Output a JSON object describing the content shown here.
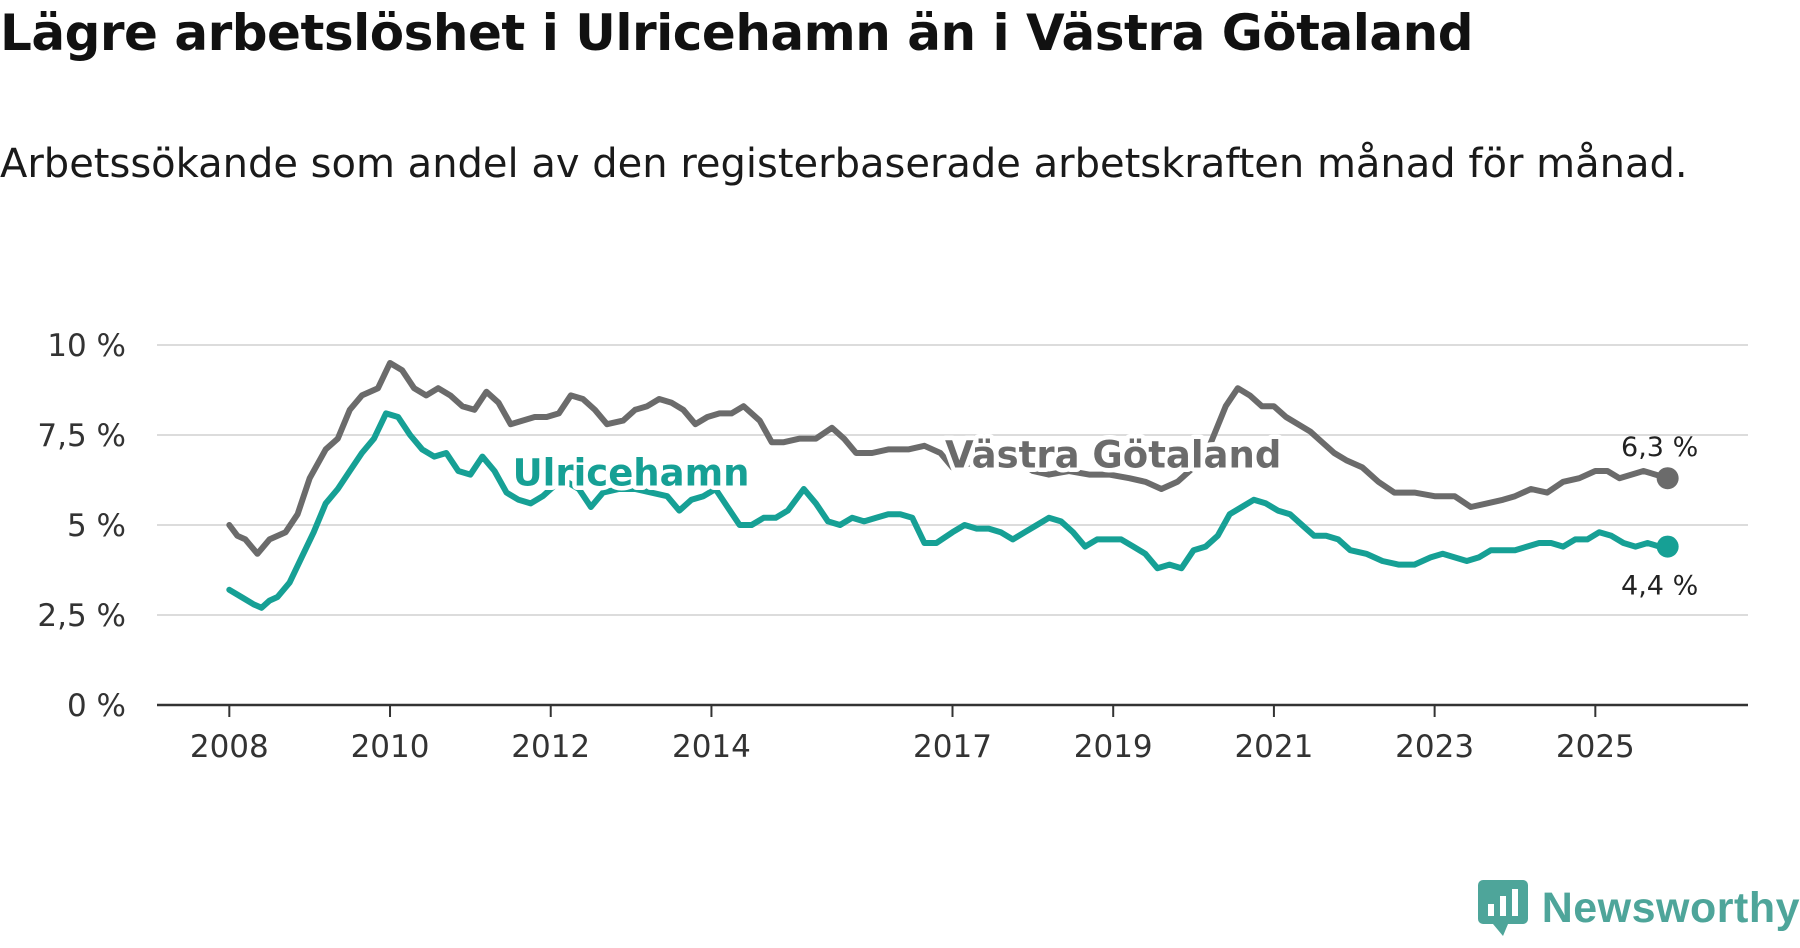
{
  "header": {
    "title": "Lägre arbetslöshet i Ulricehamn än i Västra Götaland",
    "subtitle": "Arbetssökande som andel av den registerbaserade arbetskraften månad för månad."
  },
  "brand": {
    "name": "Newsworthy",
    "icon": "newsworthy-logo-icon",
    "color": "#4ea59a"
  },
  "chart_data": {
    "type": "line",
    "title": "Lägre arbetslöshet i Ulricehamn än i Västra Götaland",
    "subtitle": "Arbetssökande som andel av den registerbaserade arbetskraften månad för månad.",
    "xlabel": "",
    "ylabel": "",
    "x_unit": "year (decimal)",
    "xlim": [
      2007.1,
      2026.9
    ],
    "ylim": [
      0,
      10
    ],
    "grid": true,
    "y_ticks": [
      0,
      2.5,
      5,
      7.5,
      10
    ],
    "y_tick_labels": [
      "0 %",
      "2,5 %",
      "5 %",
      "7,5 %",
      "10 %"
    ],
    "x_ticks": [
      2008,
      2010,
      2012,
      2014,
      2017,
      2019,
      2021,
      2023,
      2025
    ],
    "x_tick_labels": [
      "2008",
      "2010",
      "2012",
      "2014",
      "2017",
      "2019",
      "2021",
      "2023",
      "2025"
    ],
    "series": [
      {
        "name": "Västra Götaland",
        "color": "#6b6b6b",
        "end_label": "6,3 %",
        "points": [
          [
            2008.0,
            5.0
          ],
          [
            2008.1,
            4.7
          ],
          [
            2008.2,
            4.6
          ],
          [
            2008.35,
            4.2
          ],
          [
            2008.5,
            4.6
          ],
          [
            2008.7,
            4.8
          ],
          [
            2008.85,
            5.3
          ],
          [
            2009.0,
            6.3
          ],
          [
            2009.2,
            7.1
          ],
          [
            2009.35,
            7.4
          ],
          [
            2009.5,
            8.2
          ],
          [
            2009.65,
            8.6
          ],
          [
            2009.85,
            8.8
          ],
          [
            2010.0,
            9.5
          ],
          [
            2010.15,
            9.3
          ],
          [
            2010.3,
            8.8
          ],
          [
            2010.45,
            8.6
          ],
          [
            2010.6,
            8.8
          ],
          [
            2010.75,
            8.6
          ],
          [
            2010.9,
            8.3
          ],
          [
            2011.05,
            8.2
          ],
          [
            2011.2,
            8.7
          ],
          [
            2011.35,
            8.4
          ],
          [
            2011.5,
            7.8
          ],
          [
            2011.65,
            7.9
          ],
          [
            2011.8,
            8.0
          ],
          [
            2011.95,
            8.0
          ],
          [
            2012.1,
            8.1
          ],
          [
            2012.25,
            8.6
          ],
          [
            2012.4,
            8.5
          ],
          [
            2012.55,
            8.2
          ],
          [
            2012.7,
            7.8
          ],
          [
            2012.9,
            7.9
          ],
          [
            2013.05,
            8.2
          ],
          [
            2013.2,
            8.3
          ],
          [
            2013.35,
            8.5
          ],
          [
            2013.5,
            8.4
          ],
          [
            2013.65,
            8.2
          ],
          [
            2013.8,
            7.8
          ],
          [
            2013.95,
            8.0
          ],
          [
            2014.1,
            8.1
          ],
          [
            2014.25,
            8.1
          ],
          [
            2014.4,
            8.3
          ],
          [
            2014.6,
            7.9
          ],
          [
            2014.75,
            7.3
          ],
          [
            2014.9,
            7.3
          ],
          [
            2015.1,
            7.4
          ],
          [
            2015.3,
            7.4
          ],
          [
            2015.5,
            7.7
          ],
          [
            2015.65,
            7.4
          ],
          [
            2015.8,
            7.0
          ],
          [
            2016.0,
            7.0
          ],
          [
            2016.2,
            7.1
          ],
          [
            2016.45,
            7.1
          ],
          [
            2016.65,
            7.2
          ],
          [
            2016.85,
            7.0
          ],
          [
            2017.0,
            6.6
          ],
          [
            2017.2,
            6.7
          ],
          [
            2017.4,
            6.8
          ],
          [
            2017.6,
            6.9
          ],
          [
            2017.8,
            6.8
          ],
          [
            2018.0,
            6.5
          ],
          [
            2018.2,
            6.4
          ],
          [
            2018.45,
            6.5
          ],
          [
            2018.7,
            6.4
          ],
          [
            2018.95,
            6.4
          ],
          [
            2019.2,
            6.3
          ],
          [
            2019.4,
            6.2
          ],
          [
            2019.6,
            6.0
          ],
          [
            2019.8,
            6.2
          ],
          [
            2020.0,
            6.6
          ],
          [
            2020.2,
            7.2
          ],
          [
            2020.4,
            8.3
          ],
          [
            2020.55,
            8.8
          ],
          [
            2020.7,
            8.6
          ],
          [
            2020.85,
            8.3
          ],
          [
            2021.0,
            8.3
          ],
          [
            2021.15,
            8.0
          ],
          [
            2021.3,
            7.8
          ],
          [
            2021.45,
            7.6
          ],
          [
            2021.6,
            7.3
          ],
          [
            2021.75,
            7.0
          ],
          [
            2021.9,
            6.8
          ],
          [
            2022.1,
            6.6
          ],
          [
            2022.3,
            6.2
          ],
          [
            2022.5,
            5.9
          ],
          [
            2022.75,
            5.9
          ],
          [
            2023.0,
            5.8
          ],
          [
            2023.25,
            5.8
          ],
          [
            2023.45,
            5.5
          ],
          [
            2023.65,
            5.6
          ],
          [
            2023.85,
            5.7
          ],
          [
            2024.0,
            5.8
          ],
          [
            2024.2,
            6.0
          ],
          [
            2024.4,
            5.9
          ],
          [
            2024.6,
            6.2
          ],
          [
            2024.8,
            6.3
          ],
          [
            2025.0,
            6.5
          ],
          [
            2025.15,
            6.5
          ],
          [
            2025.3,
            6.3
          ],
          [
            2025.45,
            6.4
          ],
          [
            2025.6,
            6.5
          ],
          [
            2025.75,
            6.4
          ],
          [
            2025.9,
            6.3
          ]
        ]
      },
      {
        "name": "Ulricehamn",
        "color": "#16a095",
        "end_label": "4,4 %",
        "points": [
          [
            2008.0,
            3.2
          ],
          [
            2008.15,
            3.0
          ],
          [
            2008.3,
            2.8
          ],
          [
            2008.4,
            2.7
          ],
          [
            2008.5,
            2.9
          ],
          [
            2008.6,
            3.0
          ],
          [
            2008.75,
            3.4
          ],
          [
            2008.9,
            4.1
          ],
          [
            2009.05,
            4.8
          ],
          [
            2009.2,
            5.6
          ],
          [
            2009.35,
            6.0
          ],
          [
            2009.5,
            6.5
          ],
          [
            2009.65,
            7.0
          ],
          [
            2009.8,
            7.4
          ],
          [
            2009.95,
            8.1
          ],
          [
            2010.1,
            8.0
          ],
          [
            2010.25,
            7.5
          ],
          [
            2010.4,
            7.1
          ],
          [
            2010.55,
            6.9
          ],
          [
            2010.7,
            7.0
          ],
          [
            2010.85,
            6.5
          ],
          [
            2011.0,
            6.4
          ],
          [
            2011.15,
            6.9
          ],
          [
            2011.3,
            6.5
          ],
          [
            2011.45,
            5.9
          ],
          [
            2011.6,
            5.7
          ],
          [
            2011.75,
            5.6
          ],
          [
            2011.9,
            5.8
          ],
          [
            2012.05,
            6.1
          ],
          [
            2012.2,
            6.2
          ],
          [
            2012.35,
            6.0
          ],
          [
            2012.5,
            5.5
          ],
          [
            2012.65,
            5.9
          ],
          [
            2012.85,
            6.0
          ],
          [
            2013.05,
            6.0
          ],
          [
            2013.25,
            5.9
          ],
          [
            2013.45,
            5.8
          ],
          [
            2013.6,
            5.4
          ],
          [
            2013.75,
            5.7
          ],
          [
            2013.9,
            5.8
          ],
          [
            2014.05,
            6.0
          ],
          [
            2014.2,
            5.5
          ],
          [
            2014.35,
            5.0
          ],
          [
            2014.5,
            5.0
          ],
          [
            2014.65,
            5.2
          ],
          [
            2014.8,
            5.2
          ],
          [
            2014.95,
            5.4
          ],
          [
            2015.15,
            6.0
          ],
          [
            2015.3,
            5.6
          ],
          [
            2015.45,
            5.1
          ],
          [
            2015.6,
            5.0
          ],
          [
            2015.75,
            5.2
          ],
          [
            2015.9,
            5.1
          ],
          [
            2016.05,
            5.2
          ],
          [
            2016.2,
            5.3
          ],
          [
            2016.35,
            5.3
          ],
          [
            2016.5,
            5.2
          ],
          [
            2016.65,
            4.5
          ],
          [
            2016.8,
            4.5
          ],
          [
            2017.0,
            4.8
          ],
          [
            2017.15,
            5.0
          ],
          [
            2017.3,
            4.9
          ],
          [
            2017.45,
            4.9
          ],
          [
            2017.6,
            4.8
          ],
          [
            2017.75,
            4.6
          ],
          [
            2017.9,
            4.8
          ],
          [
            2018.05,
            5.0
          ],
          [
            2018.2,
            5.2
          ],
          [
            2018.35,
            5.1
          ],
          [
            2018.5,
            4.8
          ],
          [
            2018.65,
            4.4
          ],
          [
            2018.8,
            4.6
          ],
          [
            2018.95,
            4.6
          ],
          [
            2019.1,
            4.6
          ],
          [
            2019.25,
            4.4
          ],
          [
            2019.4,
            4.2
          ],
          [
            2019.55,
            3.8
          ],
          [
            2019.7,
            3.9
          ],
          [
            2019.85,
            3.8
          ],
          [
            2020.0,
            4.3
          ],
          [
            2020.15,
            4.4
          ],
          [
            2020.3,
            4.7
          ],
          [
            2020.45,
            5.3
          ],
          [
            2020.6,
            5.5
          ],
          [
            2020.75,
            5.7
          ],
          [
            2020.9,
            5.6
          ],
          [
            2021.05,
            5.4
          ],
          [
            2021.2,
            5.3
          ],
          [
            2021.35,
            5.0
          ],
          [
            2021.5,
            4.7
          ],
          [
            2021.65,
            4.7
          ],
          [
            2021.8,
            4.6
          ],
          [
            2021.95,
            4.3
          ],
          [
            2022.15,
            4.2
          ],
          [
            2022.35,
            4.0
          ],
          [
            2022.55,
            3.9
          ],
          [
            2022.75,
            3.9
          ],
          [
            2022.95,
            4.1
          ],
          [
            2023.1,
            4.2
          ],
          [
            2023.25,
            4.1
          ],
          [
            2023.4,
            4.0
          ],
          [
            2023.55,
            4.1
          ],
          [
            2023.7,
            4.3
          ],
          [
            2023.85,
            4.3
          ],
          [
            2024.0,
            4.3
          ],
          [
            2024.15,
            4.4
          ],
          [
            2024.3,
            4.5
          ],
          [
            2024.45,
            4.5
          ],
          [
            2024.6,
            4.4
          ],
          [
            2024.75,
            4.6
          ],
          [
            2024.9,
            4.6
          ],
          [
            2025.05,
            4.8
          ],
          [
            2025.2,
            4.7
          ],
          [
            2025.35,
            4.5
          ],
          [
            2025.5,
            4.4
          ],
          [
            2025.65,
            4.5
          ],
          [
            2025.8,
            4.4
          ],
          [
            2025.9,
            4.4
          ]
        ]
      }
    ],
    "annotations": [
      {
        "text": "Ulricehamn",
        "series": "Ulricehamn",
        "x": 2013.0,
        "y": 6.1
      },
      {
        "text": "Västra Götaland",
        "series": "Västra Götaland",
        "x": 2019.0,
        "y": 6.6
      }
    ]
  }
}
